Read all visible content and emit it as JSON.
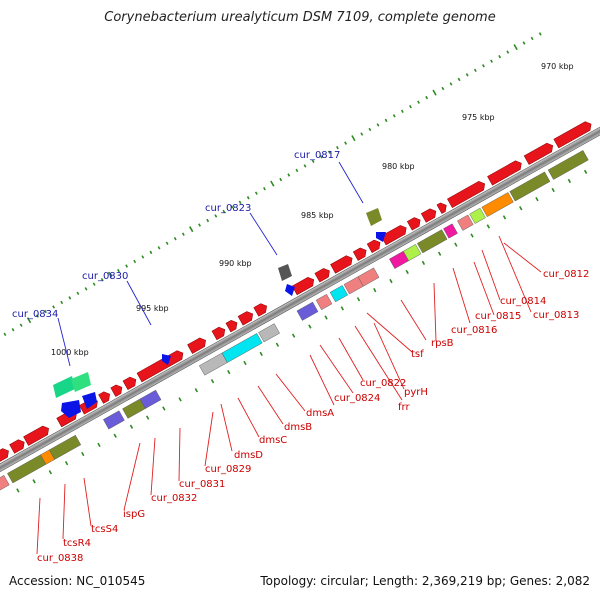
{
  "title": "Corynebacterium urealyticum DSM 7109, complete genome",
  "accession": "Accession: NC_010545",
  "summary": "Topology: circular; Length: 2,369,219 bp; Genes: 2,082",
  "scale_labels": [
    "970 kbp",
    "975 kbp",
    "980 kbp",
    "985 kbp",
    "990 kbp",
    "995 kbp",
    "1000 kbp"
  ],
  "upper_labels": [
    "cur_0817",
    "cur_0823",
    "cur_0830",
    "cur_0834"
  ],
  "lower_labels": [
    "cur_0812",
    "cur_0814",
    "cur_0813",
    "cur_0815",
    "cur_0816",
    "rpsB",
    "tsf",
    "pyrH",
    "frr",
    "cur_0822",
    "cur_0824",
    "dmsA",
    "dmsB",
    "dmsC",
    "dmsD",
    "cur_0829",
    "cur_0831",
    "cur_0832",
    "ispG",
    "tcsS4",
    "tcsR4",
    "cur_0838"
  ],
  "colors": {
    "backbone": "#8a8a8a",
    "gene_red": "#e8141c",
    "cog_green": "#7a8a28",
    "cog_cyan": "#00e5f0",
    "cog_grey": "#b8b8b8",
    "cog_purple": "#6a5cd8",
    "cog_pink": "#f08080",
    "cog_magenta": "#f01aa0",
    "cog_orange": "#ff8c00",
    "cog_lime": "#aef04a",
    "tick_green": "#2e8b22",
    "gene_blue": "#0a14e6"
  }
}
